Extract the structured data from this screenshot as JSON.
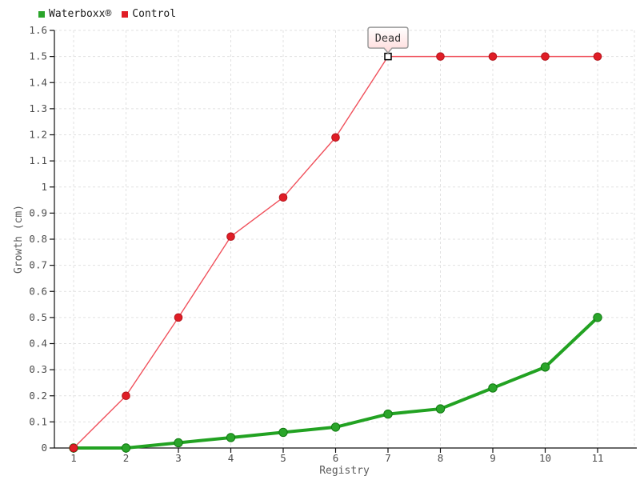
{
  "chart_data": {
    "type": "line",
    "title": "",
    "xlabel": "Registry",
    "ylabel": "Growth (cm)",
    "x": [
      1,
      2,
      3,
      4,
      5,
      6,
      7,
      8,
      9,
      10,
      11
    ],
    "xlim": [
      1,
      11
    ],
    "ylim": [
      0,
      1.6
    ],
    "ytick_step": 0.1,
    "grid": "dashed",
    "legend_position": "top-left",
    "series": [
      {
        "name": "Waterboxx®",
        "color": "#22a222",
        "marker_color": "#2aa52a",
        "marker": "circle",
        "line_width": 4,
        "values": [
          0,
          0,
          0.02,
          0.04,
          0.06,
          0.08,
          0.13,
          0.15,
          0.23,
          0.31,
          0.5
        ]
      },
      {
        "name": "Control",
        "color": "#f0505b",
        "marker_color": "#e01d26",
        "marker": "circle",
        "line_width": 1.4,
        "values": [
          0,
          0.2,
          0.5,
          0.81,
          0.96,
          1.19,
          1.5,
          1.5,
          1.5,
          1.5,
          1.5
        ]
      }
    ],
    "annotation": {
      "text": "Dead",
      "x": 7,
      "y": 1.5,
      "series": "Control",
      "marker": "open-square"
    },
    "colors": {
      "grid": "#e1e1e1",
      "axis": "#111111",
      "tick_label": "#4d4d4d",
      "axis_title": "#5c5c5c",
      "balloon_border": "#9b9b9b",
      "balloon_fill_top": "#ffffff",
      "balloon_fill_bottom": "#ffd9d9",
      "balloon_text": "#333333"
    }
  }
}
